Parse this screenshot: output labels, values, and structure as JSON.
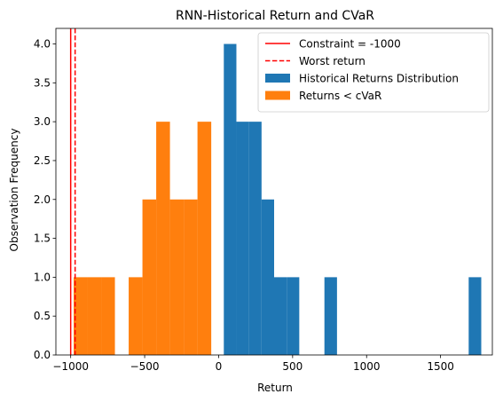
{
  "chart_data": {
    "type": "bar",
    "title": "RNN-Historical Return and CVaR",
    "xlabel": "Return",
    "ylabel": "Observation Frequency",
    "xlim": [
      -1100,
      1850
    ],
    "ylim": [
      0,
      4.2
    ],
    "xticks": [
      -1000,
      -500,
      0,
      500,
      1000,
      1500
    ],
    "xtick_labels": [
      "−1000",
      "−500",
      "0",
      "500",
      "1000",
      "1500"
    ],
    "yticks": [
      0.0,
      0.5,
      1.0,
      1.5,
      2.0,
      2.5,
      3.0,
      3.5,
      4.0
    ],
    "ytick_labels": [
      "0.0",
      "0.5",
      "1.0",
      "1.5",
      "2.0",
      "2.5",
      "3.0",
      "3.5",
      "4.0"
    ],
    "grid": false,
    "legend_position": "top-right",
    "series": [
      {
        "name": "Historical Returns Distribution",
        "color": "#1f77b4",
        "bins": [
          {
            "x0": 35,
            "x1": 120,
            "count": 4
          },
          {
            "x0": 120,
            "x1": 205,
            "count": 3
          },
          {
            "x0": 205,
            "x1": 290,
            "count": 3
          },
          {
            "x0": 290,
            "x1": 375,
            "count": 2
          },
          {
            "x0": 375,
            "x1": 460,
            "count": 1
          },
          {
            "x0": 460,
            "x1": 545,
            "count": 1
          },
          {
            "x0": 715,
            "x1": 800,
            "count": 1
          },
          {
            "x0": 1690,
            "x1": 1775,
            "count": 1
          }
        ]
      },
      {
        "name": "Returns < cVaR",
        "color": "#ff7f0e",
        "bins": [
          {
            "x0": -980,
            "x1": -887,
            "count": 1
          },
          {
            "x0": -887,
            "x1": -794,
            "count": 1
          },
          {
            "x0": -794,
            "x1": -701,
            "count": 1
          },
          {
            "x0": -608,
            "x1": -515,
            "count": 1
          },
          {
            "x0": -515,
            "x1": -422,
            "count": 2
          },
          {
            "x0": -422,
            "x1": -329,
            "count": 3
          },
          {
            "x0": -329,
            "x1": -236,
            "count": 2
          },
          {
            "x0": -236,
            "x1": -143,
            "count": 2
          },
          {
            "x0": -143,
            "x1": -50,
            "count": 3
          }
        ]
      }
    ],
    "lines": [
      {
        "name": "Constraint = -1000",
        "x": -1000,
        "color": "#ff0000",
        "style": "solid"
      },
      {
        "name": "Worst return",
        "x": -970,
        "color": "#ff0000",
        "style": "dashed"
      }
    ]
  }
}
